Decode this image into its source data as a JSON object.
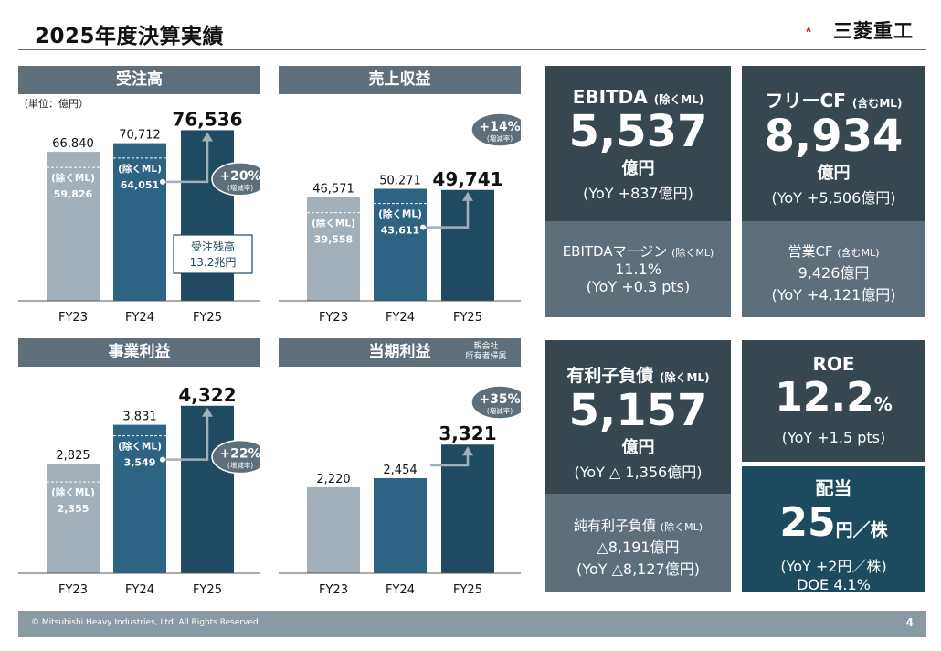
{
  "page": {
    "title": "2025年度決算実績",
    "company": "三菱重工",
    "copyright": "© Mitsubishi Heavy Industries, Ltd.  All Rights Reserved.",
    "page_number": "4"
  },
  "unit_note": "（単位：億円）",
  "owner_note": [
    "親会社",
    "所有者帰属"
  ],
  "chart_data": [
    {
      "type": "bar",
      "title": "受注高",
      "categories": [
        "FY23",
        "FY24",
        "FY25"
      ],
      "values": [
        66840,
        70712,
        76536
      ],
      "value_labels": [
        "66,840",
        "70,712",
        "76,536"
      ],
      "excl_ml_label": "(除くML)",
      "excl_ml_values": [
        "59,826",
        "64,051",
        ""
      ],
      "excl_ml_fraction": [
        0.895,
        0.906
      ],
      "growth": "+20%",
      "growth_sub": "(増減率)",
      "callout": [
        "受注残高",
        "13.2兆円"
      ],
      "ymax": 80000
    },
    {
      "type": "bar",
      "title": "売上収益",
      "categories": [
        "FY23",
        "FY24",
        "FY25"
      ],
      "values": [
        46571,
        50271,
        49741
      ],
      "value_labels": [
        "46,571",
        "50,271",
        "49,741"
      ],
      "excl_ml_label": "(除くML)",
      "excl_ml_values": [
        "39,558",
        "43,611",
        ""
      ],
      "excl_ml_fraction": [
        0.849,
        0.868
      ],
      "growth": "+14%",
      "growth_sub": "(増減率)",
      "ymax": 80000
    },
    {
      "type": "bar",
      "title": "事業利益",
      "categories": [
        "FY23",
        "FY24",
        "FY25"
      ],
      "values": [
        2825,
        3831,
        4322
      ],
      "value_labels": [
        "2,825",
        "3,831",
        "4,322"
      ],
      "excl_ml_label": "(除くML)",
      "excl_ml_values": [
        "2,355",
        "3,549",
        ""
      ],
      "excl_ml_fraction": [
        0.834,
        0.926
      ],
      "growth": "+22%",
      "growth_sub": "(増減率)",
      "ymax": 4600
    },
    {
      "type": "bar",
      "title": "当期利益",
      "categories": [
        "FY23",
        "FY24",
        "FY25"
      ],
      "values": [
        2220,
        2454,
        3321
      ],
      "value_labels": [
        "2,220",
        "2,454",
        "3,321"
      ],
      "growth": "+35%",
      "growth_sub": "(増減率)",
      "ymax": 4600
    }
  ],
  "kpis": {
    "ebitda": {
      "title": "EBITDA",
      "title_sub": "(除くML)",
      "value": "5,537",
      "unit": "億円",
      "yoy": "(YoY +837億円)"
    },
    "ebitda_margin": {
      "label": "EBITDAマージン",
      "label_sub": "(除くML)",
      "value": "11.1%",
      "yoy": "(YoY +0.3 pts)"
    },
    "fcf": {
      "title": "フリーCF",
      "title_sub": "(含むML)",
      "value": "8,934",
      "unit": "億円",
      "yoy": "(YoY +5,506億円)"
    },
    "op_cf": {
      "label": "営業CF",
      "label_sub": "(含むML)",
      "value": "9,426億円",
      "yoy": "(YoY +4,121億円)"
    },
    "debt": {
      "title": "有利子負債",
      "title_sub": "(除くML)",
      "value": "5,157",
      "unit": "億円",
      "yoy": "(YoY △ 1,356億円)"
    },
    "net_debt": {
      "label": "純有利子負債",
      "label_sub": "(除くML)",
      "value": "△8,191億円",
      "yoy": "(YoY △8,127億円)"
    },
    "roe": {
      "title": "ROE",
      "value": "12.2",
      "unit": "%",
      "yoy": "(YoY +1.5 pts)"
    },
    "dividend": {
      "title": "配当",
      "value": "25",
      "unit": "円／株",
      "yoy": "(YoY +2円／株)",
      "doe": "DOE 4.1%"
    }
  },
  "colors": {
    "header": "#5c6f7b",
    "bar_fy23": "#a3b0b9",
    "bar_fy24": "#2d6383",
    "bar_fy25": "#1f4a62",
    "kpi_dark": "#36474f",
    "kpi_mid": "#5c6f7b",
    "kpi_navy": "#1e4a5f",
    "bubble": "#5c6f7b"
  }
}
